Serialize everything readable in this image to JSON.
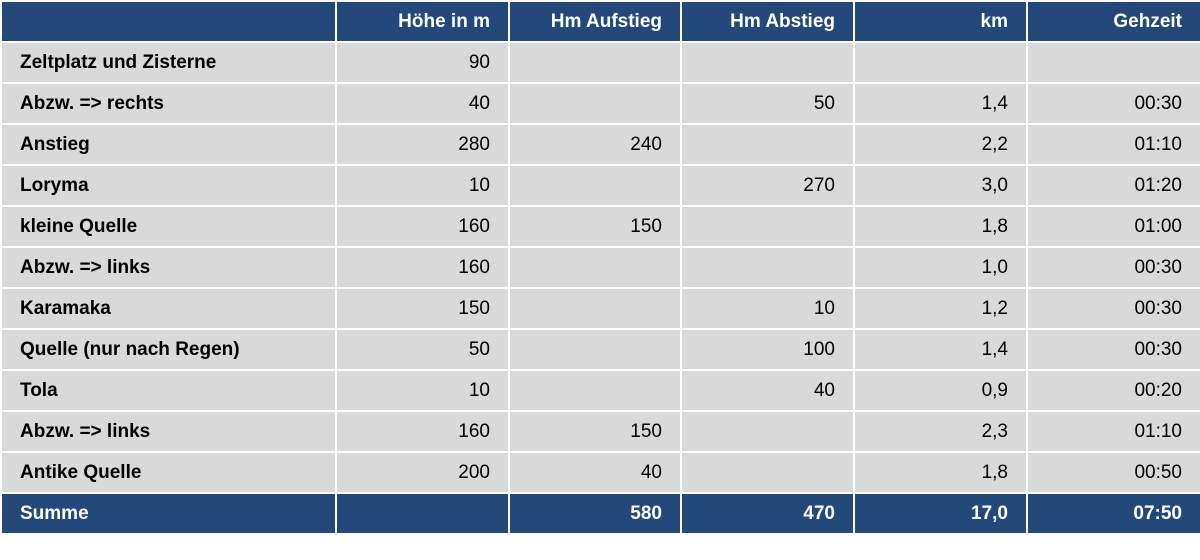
{
  "table": {
    "header": [
      null,
      "Höhe in m",
      "Hm Aufstieg",
      "Hm Abstieg",
      "km",
      "Gehzeit"
    ],
    "rows": [
      [
        "Zeltplatz und Zisterne",
        "90",
        null,
        null,
        null,
        null
      ],
      [
        "Abzw. => rechts",
        "40",
        null,
        "50",
        "1,4",
        "00:30"
      ],
      [
        "Anstieg",
        "280",
        "240",
        null,
        "2,2",
        "01:10"
      ],
      [
        "Loryma",
        "10",
        null,
        "270",
        "3,0",
        "01:20"
      ],
      [
        "kleine Quelle",
        "160",
        "150",
        null,
        "1,8",
        "01:00"
      ],
      [
        "Abzw. => links",
        "160",
        null,
        null,
        "1,0",
        "00:30"
      ],
      [
        "Karamaka",
        "150",
        null,
        "10",
        "1,2",
        "00:30"
      ],
      [
        "Quelle (nur nach Regen)",
        "50",
        null,
        "100",
        "1,4",
        "00:30"
      ],
      [
        "Tola",
        "10",
        null,
        "40",
        "0,9",
        "00:20"
      ],
      [
        "Abzw. => links",
        "160",
        "150",
        null,
        "2,3",
        "01:10"
      ],
      [
        "Antike Quelle",
        "200",
        "40",
        null,
        "1,8",
        "00:50"
      ]
    ],
    "footer": [
      "Summe",
      null,
      "580",
      "470",
      "17,0",
      "07:50"
    ]
  }
}
